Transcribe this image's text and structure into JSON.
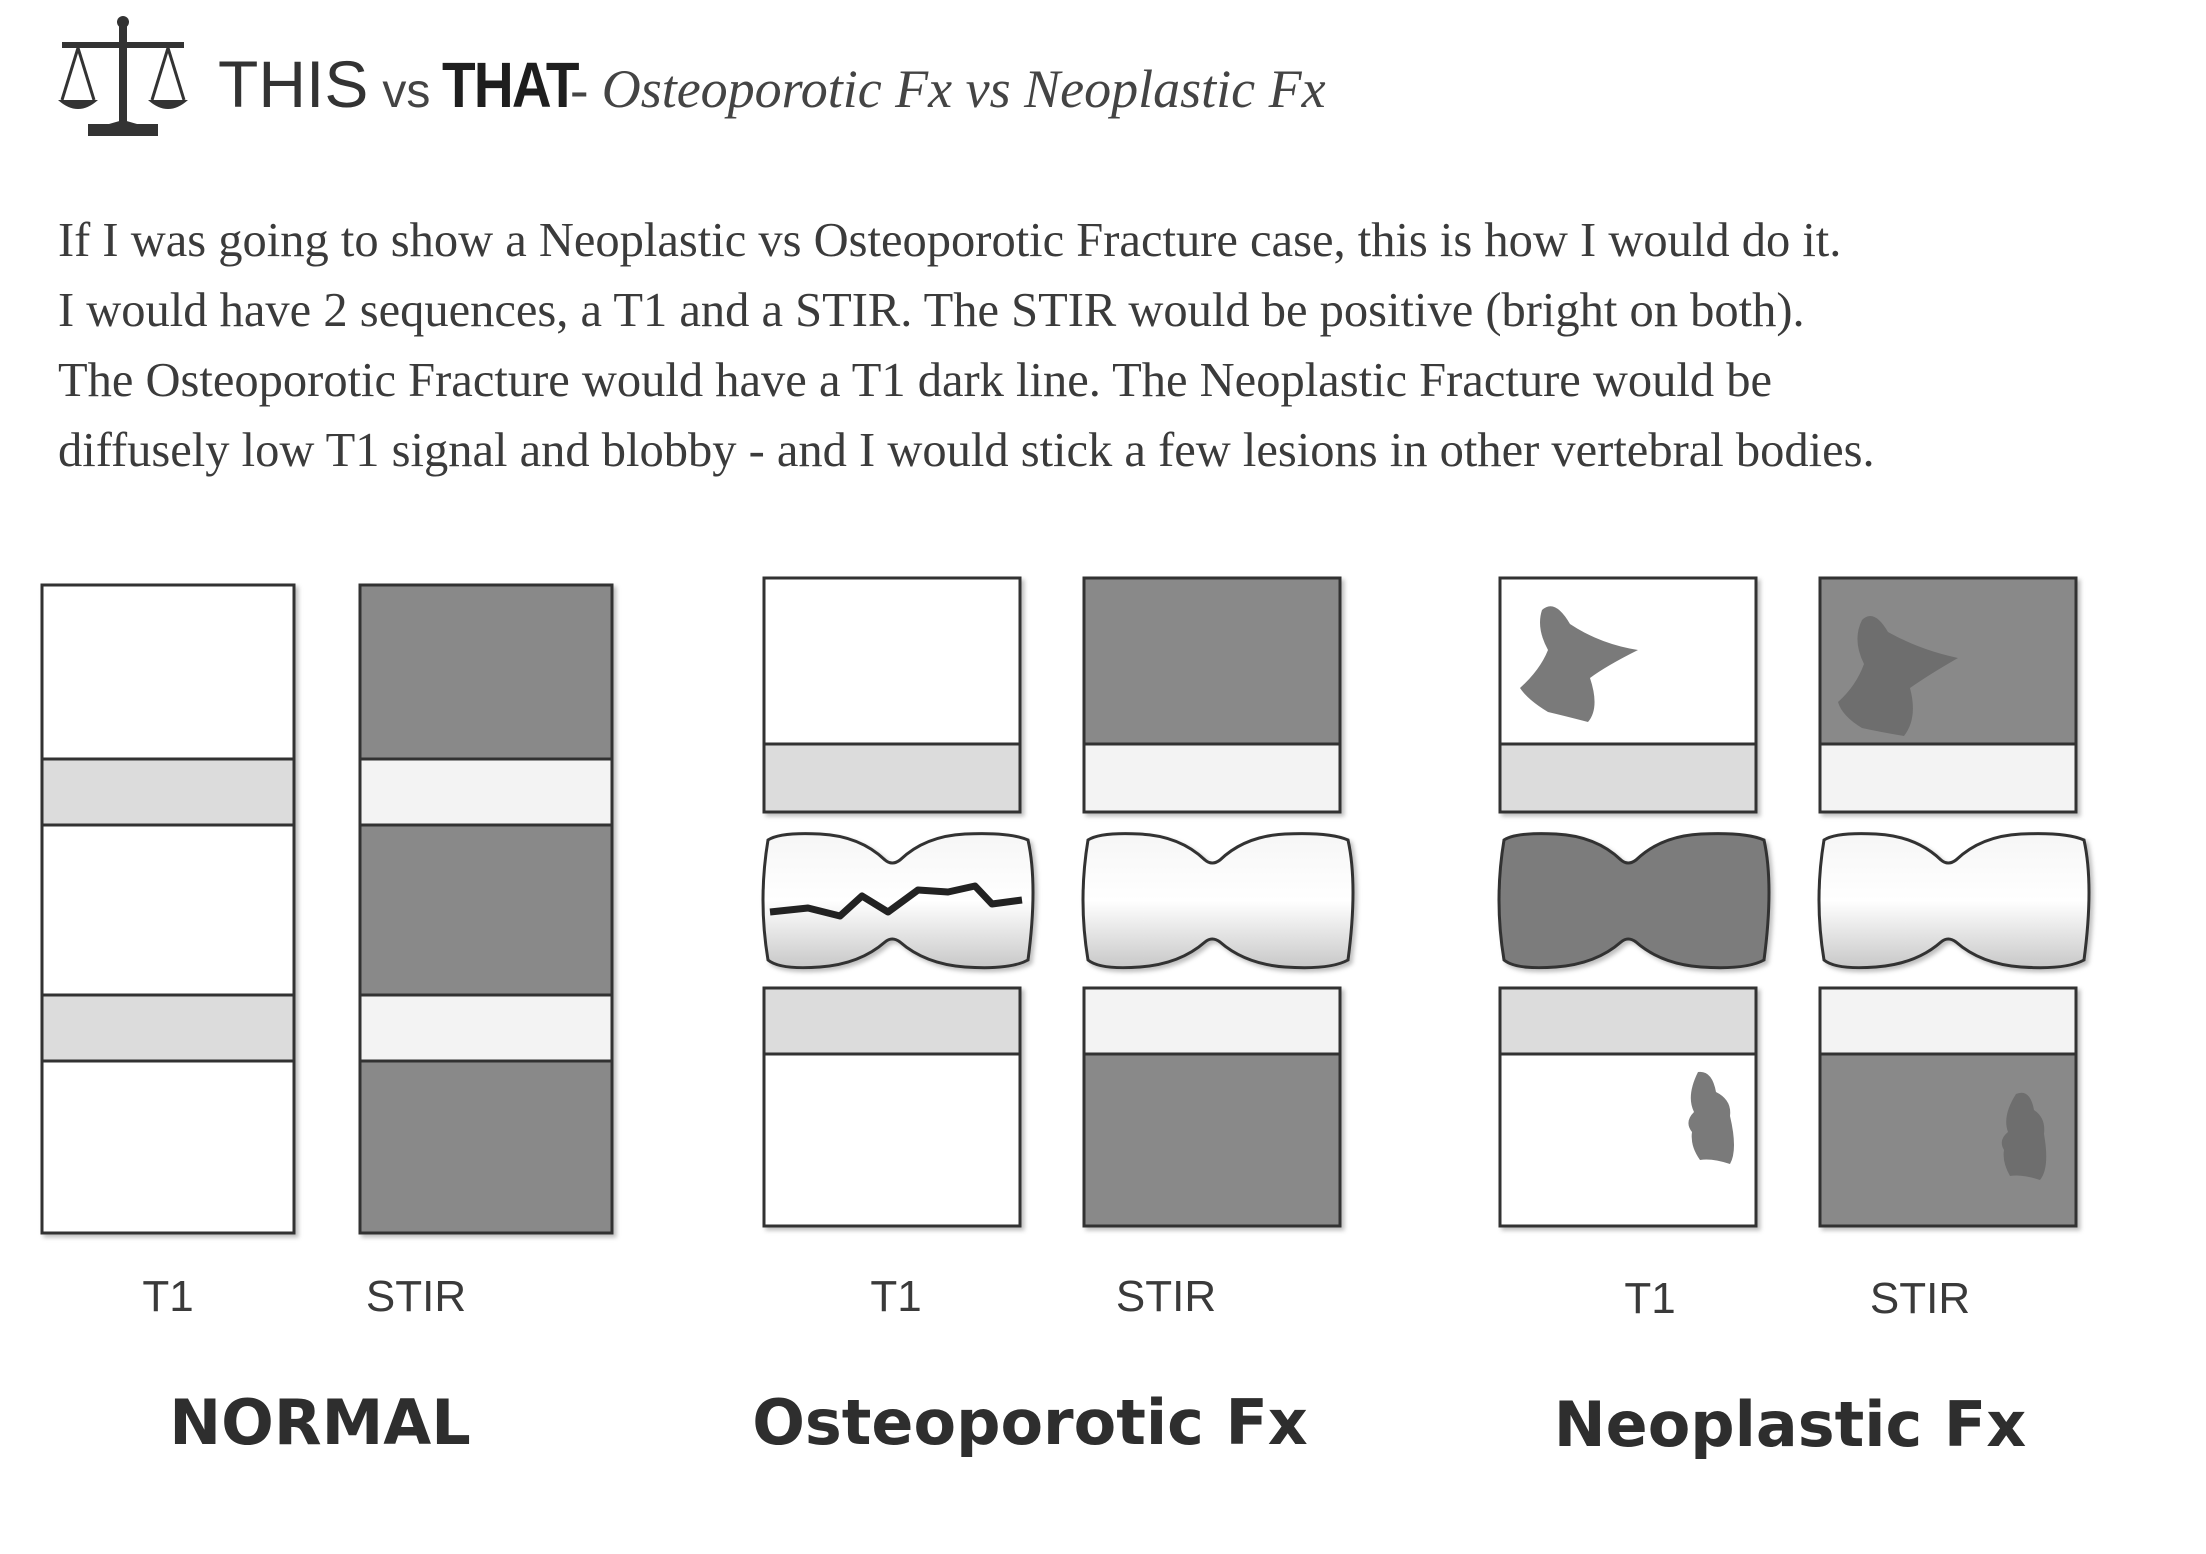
{
  "header": {
    "title_this": "THIS",
    "title_vs": "vs",
    "title_that": "THAT",
    "subtitle": "- Osteoporotic Fx vs Neoplastic Fx",
    "icon": "balance-scale-icon"
  },
  "intro": {
    "lines": [
      "If I was going to show a Neoplastic vs Osteoporotic Fracture case, this is how I would do it.",
      "I would have 2 sequences, a T1 and a STIR.  The STIR would be positive (bright on both).",
      "The Osteoporotic Fracture would have a T1 dark line.  The Neoplastic Fracture would be",
      "diffusely low T1 signal and blobby - and I would stick a few lesions in other vertebral bodies."
    ]
  },
  "groups": [
    {
      "name": "NORMAL",
      "t1_label": "T1",
      "stir_label": "STIR"
    },
    {
      "name": "Osteoporotic Fx",
      "t1_label": "T1",
      "stir_label": "STIR"
    },
    {
      "name": "Neoplastic Fx",
      "t1_label": "T1",
      "stir_label": "STIR"
    }
  ],
  "colors": {
    "bright": "#ffffff",
    "dark": "#898989",
    "disc_t1": "#dcdcdc",
    "disc_stir": "#f3f3f3",
    "outline": "#333333",
    "lesion": "#7a7a7a"
  }
}
